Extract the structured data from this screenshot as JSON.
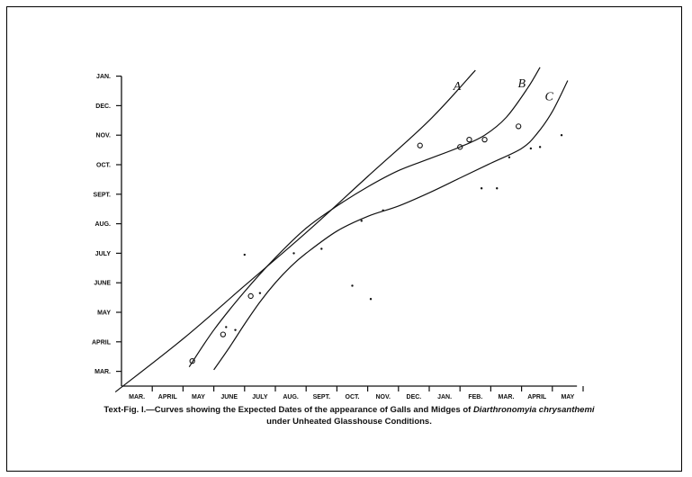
{
  "chart_data": {
    "type": "line",
    "title": "",
    "xlabel": "",
    "ylabel": "",
    "x_ticks": [
      "MAR.",
      "APRIL",
      "MAY",
      "JUNE",
      "JULY",
      "AUG.",
      "SEPT.",
      "OCT.",
      "NOV.",
      "DEC.",
      "JAN.",
      "FEB.",
      "MAR.",
      "APRIL",
      "MAY"
    ],
    "y_ticks": [
      "MAR.",
      "APRIL",
      "MAY",
      "JUNE",
      "JULY",
      "AUG.",
      "SEPT.",
      "OCT.",
      "NOV.",
      "DEC.",
      "JAN."
    ],
    "xlim": [
      0,
      14.8
    ],
    "ylim": [
      0,
      10.5
    ],
    "grid": false,
    "series": [
      {
        "name": "A",
        "points": [
          [
            -0.2,
            -0.2
          ],
          [
            2,
            1.6
          ],
          [
            4,
            3.4
          ],
          [
            6,
            5.2
          ],
          [
            8,
            7.1
          ],
          [
            10,
            9.0
          ],
          [
            11.5,
            10.7
          ]
        ]
      },
      {
        "name": "B",
        "points": [
          [
            2.2,
            0.65
          ],
          [
            3.0,
            1.9
          ],
          [
            4.0,
            3.2
          ],
          [
            5.0,
            4.35
          ],
          [
            6.0,
            5.35
          ],
          [
            7.0,
            6.1
          ],
          [
            8.0,
            6.75
          ],
          [
            9.0,
            7.3
          ],
          [
            10.0,
            7.7
          ],
          [
            11.0,
            8.1
          ],
          [
            11.8,
            8.5
          ],
          [
            12.5,
            9.1
          ],
          [
            13.2,
            10.1
          ],
          [
            13.6,
            10.8
          ]
        ]
      },
      {
        "name": "C",
        "points": [
          [
            3.0,
            0.55
          ],
          [
            3.5,
            1.3
          ],
          [
            4.0,
            2.1
          ],
          [
            4.5,
            2.85
          ],
          [
            5.0,
            3.5
          ],
          [
            5.5,
            4.05
          ],
          [
            6.0,
            4.5
          ],
          [
            7.0,
            5.25
          ],
          [
            8.0,
            5.75
          ],
          [
            9.0,
            6.1
          ],
          [
            10.0,
            6.55
          ],
          [
            11.0,
            7.05
          ],
          [
            12.0,
            7.55
          ],
          [
            13.0,
            8.05
          ],
          [
            13.5,
            8.55
          ],
          [
            14.0,
            9.3
          ],
          [
            14.5,
            10.35
          ]
        ]
      }
    ],
    "observed_circles": [
      [
        2.3,
        0.85
      ],
      [
        3.3,
        1.75
      ],
      [
        4.2,
        3.05
      ],
      [
        9.7,
        8.15
      ],
      [
        11.0,
        8.1
      ],
      [
        11.3,
        8.35
      ],
      [
        11.8,
        8.35
      ],
      [
        12.9,
        8.8
      ]
    ],
    "observed_dots": [
      [
        3.4,
        2.0
      ],
      [
        3.7,
        1.9
      ],
      [
        4.0,
        4.45
      ],
      [
        4.5,
        3.15
      ],
      [
        5.6,
        4.5
      ],
      [
        6.5,
        4.65
      ],
      [
        7.5,
        3.4
      ],
      [
        8.1,
        2.95
      ],
      [
        7.8,
        5.6
      ],
      [
        8.5,
        5.95
      ],
      [
        11.7,
        6.7
      ],
      [
        12.2,
        6.7
      ],
      [
        12.6,
        7.75
      ],
      [
        13.3,
        8.05
      ],
      [
        13.6,
        8.1
      ],
      [
        14.3,
        8.5
      ]
    ]
  },
  "caption": {
    "prefix": "Text-Fig. I.—Curves showing the Expected Dates of the appearance of Galls and Midges of ",
    "species": "Diarthronomyia chrysanthemi",
    "line2": "under Unheated Glasshouse Conditions."
  }
}
